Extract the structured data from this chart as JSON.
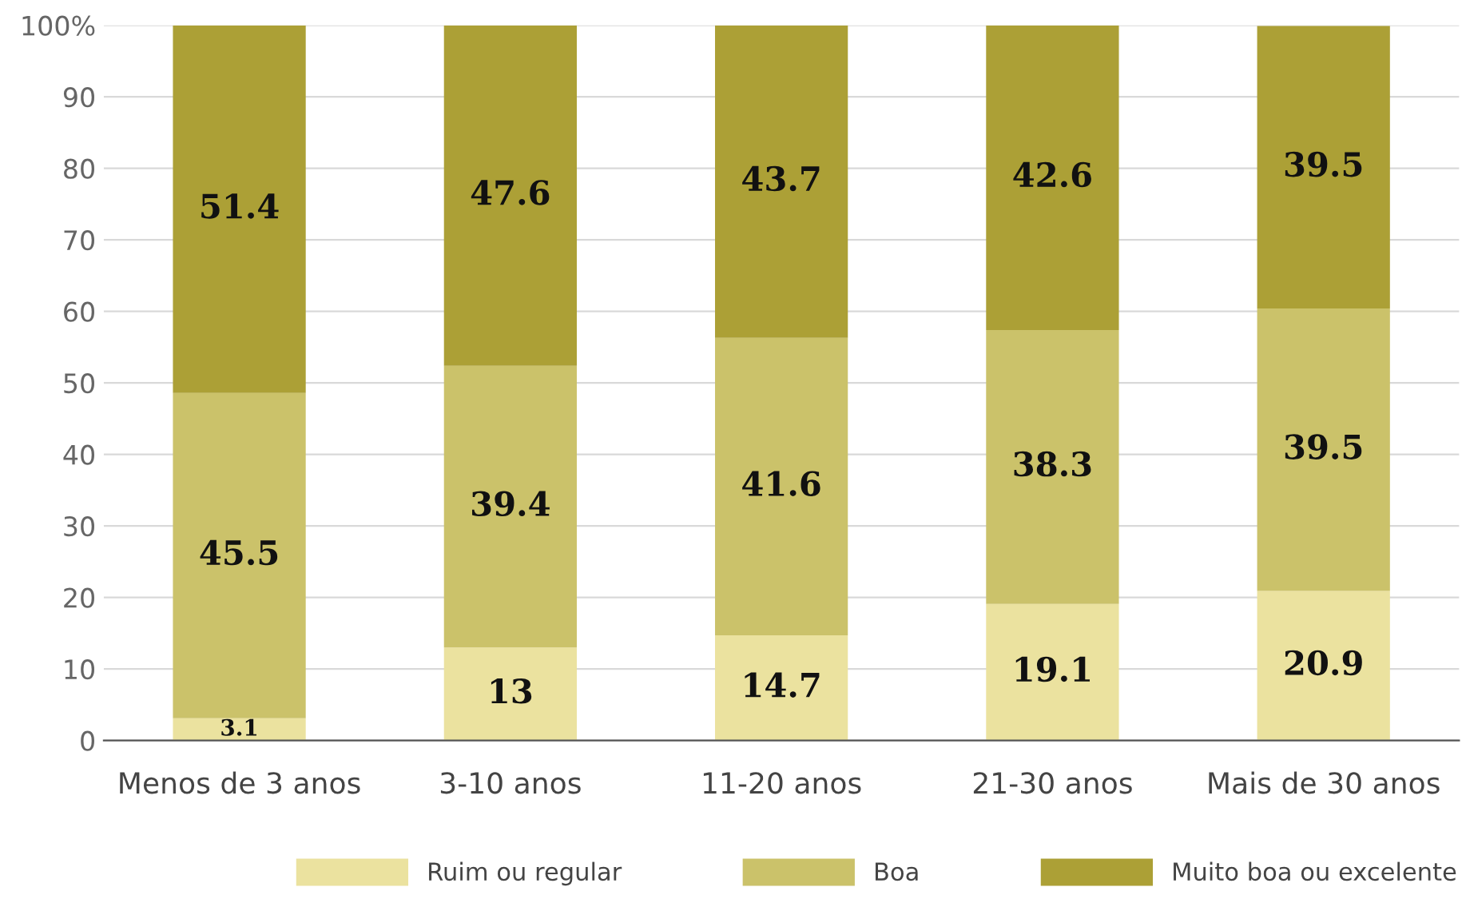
{
  "chart_data": {
    "type": "bar",
    "stacked": true,
    "categories": [
      "Menos de 3 anos",
      "3-10 anos",
      "11-20 anos",
      "21-30 anos",
      "Mais de 30 anos"
    ],
    "series": [
      {
        "name": "Ruim ou regular",
        "color": "#ebe29f",
        "values": [
          3.1,
          13,
          14.7,
          19.1,
          20.9
        ]
      },
      {
        "name": "Boa",
        "color": "#cbc26a",
        "values": [
          45.5,
          39.4,
          41.6,
          38.3,
          39.5
        ]
      },
      {
        "name": "Muito boa ou excelente",
        "color": "#aca036",
        "values": [
          51.4,
          47.6,
          43.7,
          42.6,
          39.5
        ]
      }
    ],
    "ylim": [
      0,
      100
    ],
    "yticks": [
      0,
      10,
      20,
      30,
      40,
      50,
      60,
      70,
      80,
      90,
      {
        "value": 100,
        "label": "100%"
      }
    ],
    "grid": "y",
    "legend": "bottom",
    "data_labels": true
  }
}
